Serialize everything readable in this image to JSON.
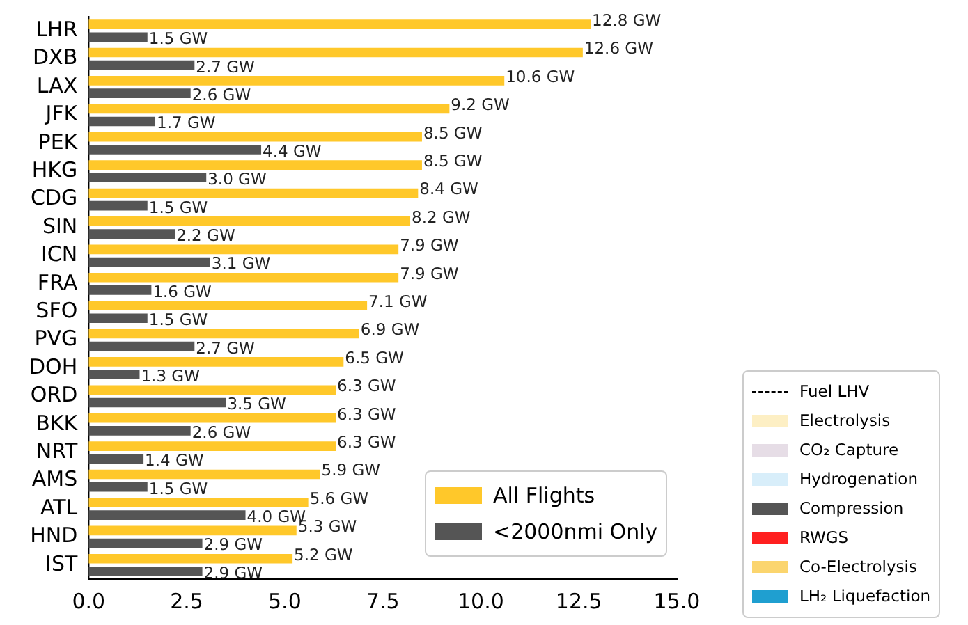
{
  "chart_data": {
    "type": "bar",
    "orientation": "horizontal",
    "categories": [
      "LHR",
      "DXB",
      "LAX",
      "JFK",
      "PEK",
      "HKG",
      "CDG",
      "SIN",
      "ICN",
      "FRA",
      "SFO",
      "PVG",
      "DOH",
      "ORD",
      "BKK",
      "NRT",
      "AMS",
      "ATL",
      "HND",
      "IST"
    ],
    "series": [
      {
        "name": "All Flights",
        "color": "#ffc82a",
        "values": [
          12.8,
          12.6,
          10.6,
          9.2,
          8.5,
          8.5,
          8.4,
          8.2,
          7.9,
          7.9,
          7.1,
          6.9,
          6.5,
          6.3,
          6.3,
          6.3,
          5.9,
          5.6,
          5.3,
          5.2
        ],
        "value_labels": [
          "12.8 GW",
          "12.6 GW",
          "10.6 GW",
          "9.2 GW",
          "8.5 GW",
          "8.5 GW",
          "8.4 GW",
          "8.2 GW",
          "7.9 GW",
          "7.9 GW",
          "7.1 GW",
          "6.9 GW",
          "6.5 GW",
          "6.3 GW",
          "6.3 GW",
          "6.3 GW",
          "5.9 GW",
          "5.6 GW",
          "5.3 GW",
          "5.2 GW"
        ]
      },
      {
        "name": "<2000nmi Only",
        "color": "#555555",
        "values": [
          1.5,
          2.7,
          2.6,
          1.7,
          4.4,
          3.0,
          1.5,
          2.2,
          3.1,
          1.6,
          1.5,
          2.7,
          1.3,
          3.5,
          2.6,
          1.4,
          1.5,
          4.0,
          2.9,
          2.9
        ],
        "value_labels": [
          "1.5 GW",
          "2.7 GW",
          "2.6 GW",
          "1.7 GW",
          "4.4 GW",
          "3.0 GW",
          "1.5 GW",
          "2.2 GW",
          "3.1 GW",
          "1.6 GW",
          "1.5 GW",
          "2.7 GW",
          "1.3 GW",
          "3.5 GW",
          "2.6 GW",
          "1.4 GW",
          "1.5 GW",
          "4.0 GW",
          "2.9 GW",
          "2.9 GW"
        ]
      },
      {
        "name": "Fuel LHV",
        "type": "line",
        "line_style": "dashed",
        "color": "#000000",
        "values": [
          null,
          null,
          null,
          null,
          null,
          null,
          null,
          null,
          null,
          null,
          null,
          null,
          null,
          null,
          null,
          null,
          null,
          null,
          null,
          null
        ]
      },
      {
        "name": "Electrolysis",
        "color": "#fdefc4",
        "values": [
          null,
          null,
          null,
          null,
          null,
          null,
          null,
          null,
          null,
          null,
          null,
          null,
          null,
          null,
          null,
          null,
          null,
          null,
          null,
          null
        ]
      },
      {
        "name": "CO₂ Capture",
        "color": "#e6dde6",
        "values": [
          null,
          null,
          null,
          null,
          null,
          null,
          null,
          null,
          null,
          null,
          null,
          null,
          null,
          null,
          null,
          null,
          null,
          null,
          null,
          null
        ]
      },
      {
        "name": "Hydrogenation",
        "color": "#d8eefa",
        "values": [
          null,
          null,
          null,
          null,
          null,
          null,
          null,
          null,
          null,
          null,
          null,
          null,
          null,
          null,
          null,
          null,
          null,
          null,
          null,
          null
        ]
      },
      {
        "name": "Compression",
        "color": "#555555",
        "values": [
          null,
          null,
          null,
          null,
          null,
          null,
          null,
          null,
          null,
          null,
          null,
          null,
          null,
          null,
          null,
          null,
          null,
          null,
          null,
          null
        ]
      },
      {
        "name": "RWGS",
        "color": "#ff2020",
        "values": [
          null,
          null,
          null,
          null,
          null,
          null,
          null,
          null,
          null,
          null,
          null,
          null,
          null,
          null,
          null,
          null,
          null,
          null,
          null,
          null
        ]
      },
      {
        "name": "Co-Electrolysis",
        "color": "#fbd56e",
        "values": [
          null,
          null,
          null,
          null,
          null,
          null,
          null,
          null,
          null,
          null,
          null,
          null,
          null,
          null,
          null,
          null,
          null,
          null,
          null,
          null
        ]
      },
      {
        "name": "LH₂ Liquefaction",
        "color": "#1f9fd0",
        "values": [
          null,
          null,
          null,
          null,
          null,
          null,
          null,
          null,
          null,
          null,
          null,
          null,
          null,
          null,
          null,
          null,
          null,
          null,
          null,
          null
        ]
      }
    ],
    "xlim": [
      0,
      15
    ],
    "xticks": [
      {
        "value": 0,
        "label": "0.0"
      },
      {
        "value": 2.5,
        "label": "2.5"
      },
      {
        "value": 5,
        "label": "5.0"
      },
      {
        "value": 7.5,
        "label": "7.5"
      },
      {
        "value": 10,
        "label": "10.0"
      },
      {
        "value": 12.5,
        "label": "12.5"
      },
      {
        "value": 15,
        "label": "15.0"
      }
    ],
    "grid": false,
    "legend": "bottom right"
  }
}
